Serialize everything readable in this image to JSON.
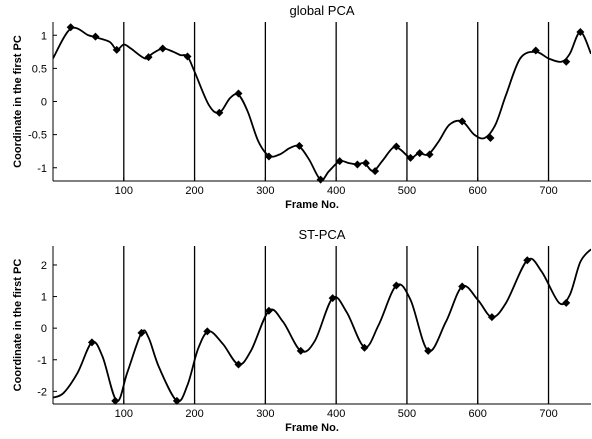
{
  "chart_data": [
    {
      "type": "line",
      "title": "global PCA",
      "xlabel": "Frame No.",
      "ylabel": "Coordinate in the first PC",
      "xlim": [
        0,
        760
      ],
      "ylim": [
        -1.2,
        1.2
      ],
      "x_ticks": [
        100,
        200,
        300,
        400,
        500,
        600,
        700
      ],
      "x_tick_labels": [
        "100",
        "200",
        "300",
        "400",
        "500",
        "600",
        "700"
      ],
      "y_ticks": [
        1,
        0.5,
        0,
        -0.5,
        -1
      ],
      "y_tick_labels": [
        "1",
        "0.5",
        "0",
        "-0.5",
        "-1"
      ],
      "vertical_lines": [
        100,
        200,
        300,
        400,
        500,
        600,
        700
      ],
      "series": [
        {
          "color": "#000000",
          "marker": "diamond",
          "x": [
            0,
            25,
            50,
            60,
            80,
            90,
            100,
            110,
            130,
            140,
            155,
            170,
            180,
            190,
            200,
            220,
            235,
            250,
            262,
            275,
            290,
            305,
            320,
            335,
            348,
            362,
            378,
            390,
            405,
            418,
            430,
            440,
            452,
            465,
            480,
            490,
            505,
            517,
            530,
            545,
            560,
            578,
            595,
            610,
            625,
            640,
            660,
            682,
            700,
            718,
            730,
            745,
            760
          ],
          "y": [
            0.65,
            1.1,
            1.0,
            0.97,
            0.9,
            0.78,
            0.86,
            0.8,
            0.65,
            0.72,
            0.8,
            0.75,
            0.7,
            0.68,
            0.45,
            -0.05,
            -0.17,
            0.05,
            0.1,
            -0.15,
            -0.6,
            -0.82,
            -0.8,
            -0.7,
            -0.68,
            -0.88,
            -1.18,
            -1.05,
            -0.9,
            -0.93,
            -0.95,
            -0.93,
            -1.05,
            -0.9,
            -0.7,
            -0.72,
            -0.85,
            -0.78,
            -0.8,
            -0.6,
            -0.35,
            -0.3,
            -0.5,
            -0.55,
            -0.35,
            0.1,
            0.65,
            0.75,
            0.65,
            0.6,
            0.72,
            1.05,
            0.72
          ],
          "markers": [
            [
              25,
              1.12
            ],
            [
              60,
              0.98
            ],
            [
              90,
              0.78
            ],
            [
              135,
              0.67
            ],
            [
              155,
              0.8
            ],
            [
              190,
              0.68
            ],
            [
              235,
              -0.17
            ],
            [
              262,
              0.12
            ],
            [
              305,
              -0.83
            ],
            [
              348,
              -0.67
            ],
            [
              378,
              -1.18
            ],
            [
              405,
              -0.9
            ],
            [
              430,
              -0.95
            ],
            [
              442,
              -0.93
            ],
            [
              455,
              -1.05
            ],
            [
              485,
              -0.68
            ],
            [
              505,
              -0.85
            ],
            [
              518,
              -0.78
            ],
            [
              532,
              -0.8
            ],
            [
              578,
              -0.3
            ],
            [
              618,
              -0.55
            ],
            [
              682,
              0.77
            ],
            [
              725,
              0.6
            ],
            [
              745,
              1.05
            ]
          ]
        }
      ]
    },
    {
      "type": "line",
      "title": "ST-PCA",
      "xlabel": "Frame No.",
      "ylabel": "Coordinate in the first PC",
      "xlim": [
        0,
        760
      ],
      "ylim": [
        -2.4,
        2.6
      ],
      "x_ticks": [
        100,
        200,
        300,
        400,
        500,
        600,
        700
      ],
      "x_tick_labels": [
        "100",
        "200",
        "300",
        "400",
        "500",
        "600",
        "700"
      ],
      "y_ticks": [
        2,
        1,
        0,
        -1,
        -2
      ],
      "y_tick_labels": [
        "2",
        "1",
        "0",
        "-1",
        "-2"
      ],
      "vertical_lines": [
        100,
        200,
        300,
        400,
        500,
        600,
        700
      ],
      "series": [
        {
          "color": "#000000",
          "marker": "diamond",
          "x": [
            0,
            15,
            35,
            55,
            70,
            90,
            105,
            125,
            135,
            150,
            175,
            190,
            205,
            220,
            240,
            262,
            280,
            305,
            325,
            350,
            370,
            395,
            415,
            440,
            460,
            485,
            505,
            530,
            555,
            578,
            600,
            620,
            640,
            670,
            690,
            715,
            730,
            745,
            760
          ],
          "y": [
            -2.2,
            -2.05,
            -1.4,
            -0.45,
            -0.9,
            -2.3,
            -1.4,
            -0.15,
            -0.3,
            -1.25,
            -2.3,
            -1.8,
            -0.65,
            -0.1,
            -0.5,
            -1.15,
            -0.7,
            0.55,
            0.2,
            -0.72,
            -0.4,
            0.95,
            0.5,
            -0.6,
            0.1,
            1.35,
            0.9,
            -0.72,
            0.2,
            1.32,
            0.9,
            0.35,
            0.8,
            2.15,
            1.8,
            0.8,
            1.05,
            2.1,
            2.5
          ],
          "markers": [
            [
              55,
              -0.45
            ],
            [
              88,
              -2.3
            ],
            [
              125,
              -0.15
            ],
            [
              175,
              -2.3
            ],
            [
              218,
              -0.1
            ],
            [
              262,
              -1.15
            ],
            [
              305,
              0.55
            ],
            [
              350,
              -0.72
            ],
            [
              395,
              0.95
            ],
            [
              440,
              -0.62
            ],
            [
              485,
              1.35
            ],
            [
              530,
              -0.72
            ],
            [
              578,
              1.32
            ],
            [
              620,
              0.35
            ],
            [
              670,
              2.15
            ],
            [
              725,
              0.8
            ]
          ]
        }
      ]
    }
  ]
}
